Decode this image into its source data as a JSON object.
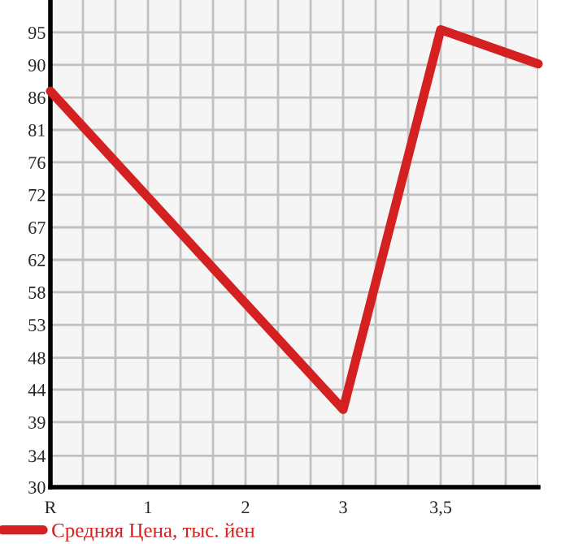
{
  "chart_data": {
    "type": "line",
    "categories": [
      "R",
      "1",
      "2",
      "3",
      "3,5",
      null
    ],
    "series": [
      {
        "name": "Средняя Цена, тыс. йен",
        "color": "#d42020",
        "values": [
          86.6,
          null,
          null,
          41.1,
          95.4,
          90.5
        ]
      }
    ],
    "ylim": [
      30,
      99.64
    ],
    "yticks": [
      30,
      {
        "value": 34.49,
        "label": "34"
      },
      {
        "value": 39.29,
        "label": "39"
      },
      {
        "value": 43.93,
        "label": "44"
      },
      {
        "value": 48.49,
        "label": "48"
      },
      {
        "value": 53.21,
        "label": "53"
      },
      {
        "value": 57.86,
        "label": "58"
      },
      {
        "value": 62.5,
        "label": "62"
      },
      {
        "value": 67.14,
        "label": "67"
      },
      {
        "value": 71.79,
        "label": "72"
      },
      {
        "value": 76.43,
        "label": "76"
      },
      {
        "value": 81.07,
        "label": "81"
      },
      {
        "value": 85.71,
        "label": "86"
      },
      {
        "value": 90.36,
        "label": "90"
      },
      95
    ],
    "grid": true,
    "legend": "bottom",
    "marker": "none",
    "line_style": "solid"
  }
}
